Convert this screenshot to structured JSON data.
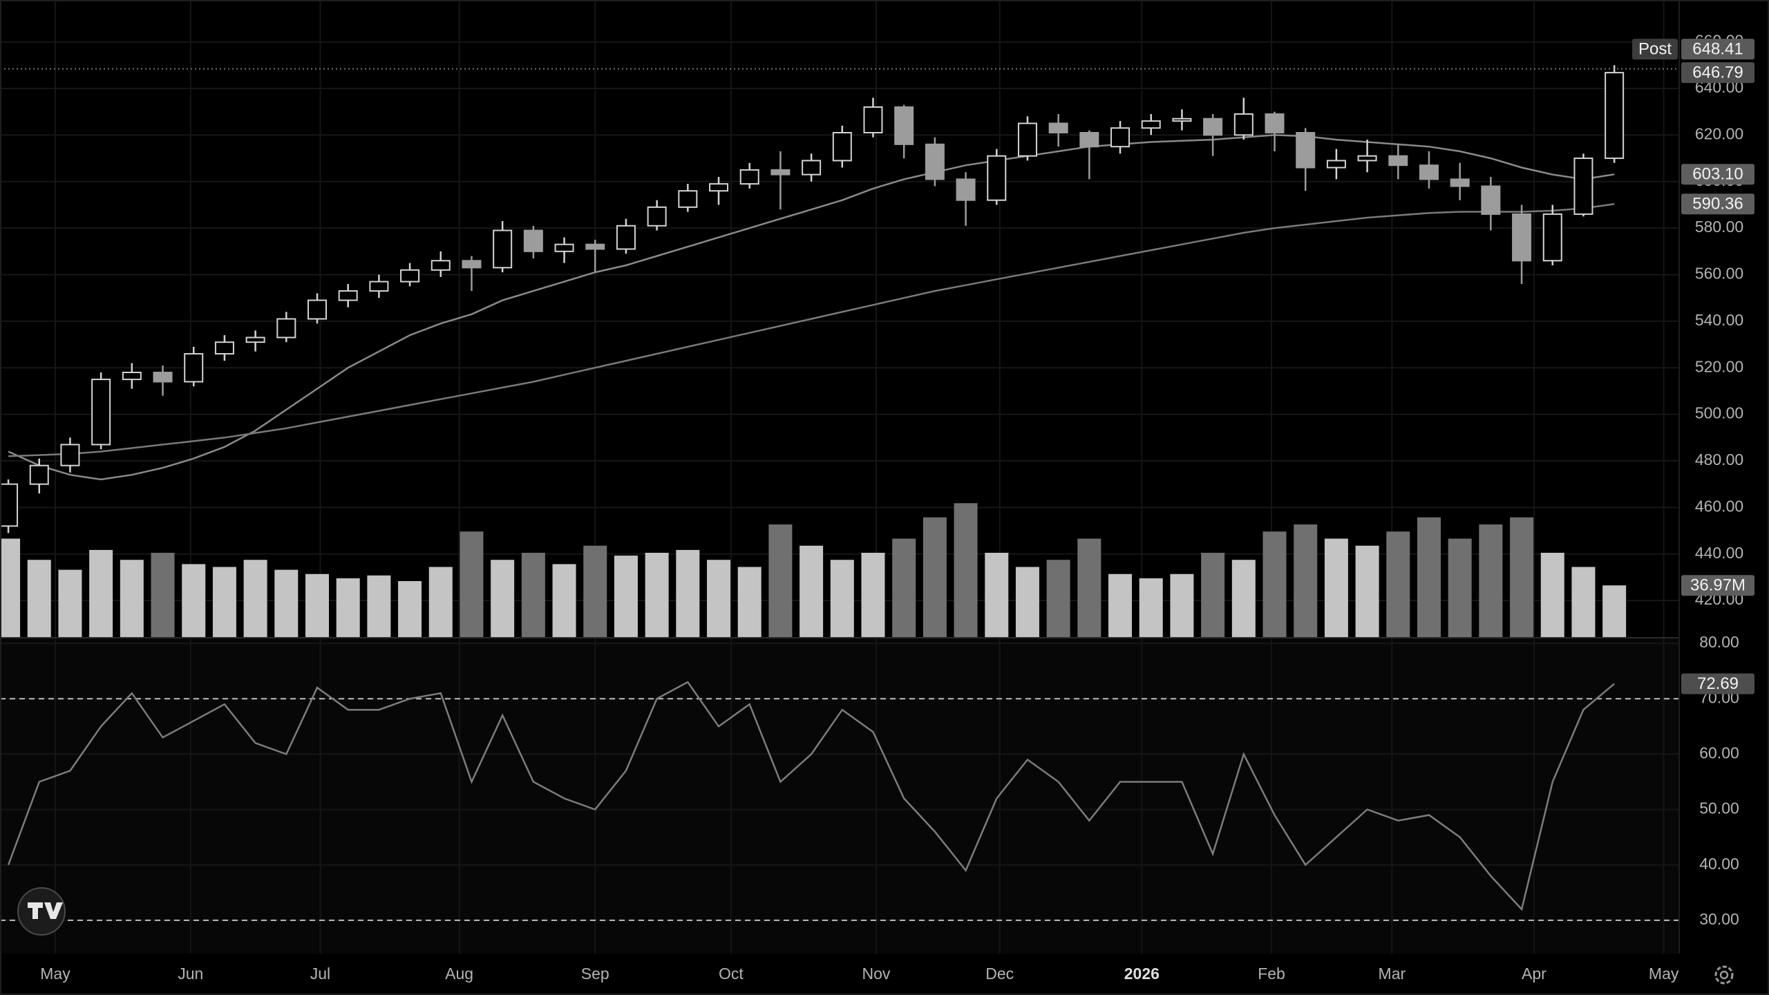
{
  "chart_data": {
    "type": "candlestick",
    "x": [
      0,
      1,
      2,
      3,
      4,
      5,
      6,
      7,
      8,
      9,
      10,
      11,
      12,
      13,
      14,
      15,
      16,
      17,
      18,
      19,
      20,
      21,
      22,
      23,
      24,
      25,
      26,
      27,
      28,
      29,
      30,
      31,
      32,
      33,
      34,
      35,
      36,
      37,
      38,
      39,
      40,
      41,
      42,
      43,
      44,
      45,
      46,
      47,
      48,
      49,
      50,
      51,
      52
    ],
    "xlim": [
      -0.27,
      54.1
    ],
    "xticks": [
      {
        "value": 1.52,
        "label": "May"
      },
      {
        "value": 5.9,
        "label": "Jun"
      },
      {
        "value": 10.1,
        "label": "Jul"
      },
      {
        "value": 14.6,
        "label": "Aug"
      },
      {
        "value": 19.0,
        "label": "Sep"
      },
      {
        "value": 23.4,
        "label": "Oct"
      },
      {
        "value": 28.1,
        "label": "Nov"
      },
      {
        "value": 32.1,
        "label": "Dec"
      },
      {
        "value": 36.7,
        "label": "2026"
      },
      {
        "value": 40.9,
        "label": "Feb"
      },
      {
        "value": 44.8,
        "label": "Mar"
      },
      {
        "value": 49.4,
        "label": "Apr"
      },
      {
        "value": 53.6,
        "label": "May"
      }
    ],
    "grid": true,
    "price": {
      "ylim": [
        404,
        678
      ],
      "yticks": [
        {
          "value": 420,
          "label": "420.00"
        },
        {
          "value": 440,
          "label": "440.00"
        },
        {
          "value": 460,
          "label": "460.00"
        },
        {
          "value": 480,
          "label": "480.00"
        },
        {
          "value": 500,
          "label": "500.00"
        },
        {
          "value": 520,
          "label": "520.00"
        },
        {
          "value": 540,
          "label": "540.00"
        },
        {
          "value": 560,
          "label": "560.00"
        },
        {
          "value": 580,
          "label": "580.00"
        },
        {
          "value": 600,
          "label": "600.00"
        },
        {
          "value": 620,
          "label": "620.00"
        },
        {
          "value": 640,
          "label": "640.00"
        },
        {
          "value": 660,
          "label": "660.00"
        }
      ],
      "candles": {
        "up_color": "#d4d4d4",
        "down_color": "#9c9c9c",
        "open": [
          452,
          470,
          478,
          487,
          515,
          518,
          514,
          526,
          531,
          533,
          541,
          549,
          553,
          557,
          562,
          566,
          563,
          579,
          570,
          573,
          571,
          581,
          589,
          596,
          599,
          605,
          603,
          609,
          621,
          632,
          616,
          601,
          592,
          611,
          625,
          621,
          615,
          623,
          626,
          627,
          620,
          629,
          621,
          606,
          609,
          611,
          607,
          601,
          598,
          586,
          566,
          586,
          610
        ],
        "high": [
          472,
          481,
          490,
          518,
          522,
          521,
          529,
          534,
          536,
          544,
          552,
          556,
          560,
          565,
          570,
          568,
          583,
          581,
          576,
          575,
          584,
          592,
          599,
          602,
          608,
          613,
          612,
          624,
          636,
          633,
          619,
          604,
          614,
          628,
          629,
          622,
          626,
          629,
          631,
          629,
          636,
          630,
          623,
          614,
          618,
          616,
          613,
          608,
          602,
          590,
          590,
          612,
          650
        ],
        "low": [
          449,
          466,
          475,
          485,
          511,
          508,
          512,
          523,
          527,
          531,
          539,
          546,
          550,
          555,
          559,
          553,
          561,
          567,
          565,
          561,
          569,
          579,
          587,
          590,
          597,
          588,
          600,
          606,
          619,
          610,
          598,
          581,
          590,
          609,
          615,
          601,
          612,
          620,
          622,
          611,
          618,
          613,
          596,
          601,
          604,
          601,
          597,
          592,
          579,
          556,
          564,
          585,
          608
        ],
        "close": [
          470,
          478,
          487,
          515,
          518,
          514,
          526,
          531,
          533,
          541,
          549,
          553,
          557,
          562,
          566,
          563,
          579,
          570,
          573,
          571,
          581,
          589,
          596,
          599,
          605,
          603,
          609,
          621,
          632,
          616,
          601,
          592,
          611,
          625,
          621,
          615,
          623,
          626,
          627,
          620,
          629,
          621,
          606,
          609,
          611,
          607,
          601,
          598,
          586,
          566,
          586,
          610,
          646.79
        ]
      },
      "ma_lines": [
        {
          "color": "#8a8a8a",
          "last_label": "603.10",
          "values": [
            484,
            478,
            474,
            472,
            474,
            477,
            481,
            486,
            493,
            502,
            511,
            520,
            527,
            534,
            539,
            543,
            549,
            553,
            557,
            561,
            564,
            568,
            572,
            576,
            580,
            584,
            588,
            592,
            597,
            601,
            604,
            607,
            609,
            611,
            613,
            615,
            616,
            617,
            617.5,
            618,
            619,
            620,
            619.5,
            618,
            617,
            616,
            615,
            613,
            610,
            606,
            603,
            601,
            603.1
          ]
        },
        {
          "color": "#7a7a7a",
          "last_label": "590.36",
          "values": [
            482,
            482.5,
            483,
            484,
            485.5,
            487,
            488.5,
            490,
            492,
            494,
            496.5,
            499,
            501.5,
            504,
            506.5,
            509,
            511.5,
            514,
            517,
            520,
            523,
            526,
            529,
            532,
            535,
            538,
            541,
            544,
            547,
            550,
            553,
            555.5,
            558,
            560.5,
            563,
            565.5,
            568,
            570.5,
            573,
            575.5,
            578,
            580,
            581.5,
            583,
            584.5,
            585.5,
            586.5,
            587,
            587,
            587,
            587.5,
            588.5,
            590.36
          ]
        }
      ],
      "post": {
        "label": "Post",
        "value": 648.41
      }
    },
    "volume": {
      "ylim": [
        0,
        140
      ],
      "up_color": "#c4c4c4",
      "down_color": "#707070",
      "values": [
        70,
        55,
        48,
        62,
        55,
        60,
        52,
        50,
        55,
        48,
        45,
        42,
        44,
        40,
        50,
        75,
        55,
        60,
        52,
        65,
        58,
        60,
        62,
        55,
        50,
        80,
        65,
        55,
        60,
        70,
        85,
        95,
        60,
        50,
        55,
        70,
        45,
        42,
        45,
        60,
        55,
        75,
        80,
        70,
        65,
        75,
        85,
        70,
        80,
        85,
        60,
        50,
        36.97
      ],
      "last_label": "36.97M"
    },
    "rsi": {
      "ylim": [
        24,
        81
      ],
      "color": "#7c7c7c",
      "yticks": [
        {
          "value": 30,
          "label": "30.00"
        },
        {
          "value": 40,
          "label": "40.00"
        },
        {
          "value": 50,
          "label": "50.00"
        },
        {
          "value": 60,
          "label": "60.00"
        },
        {
          "value": 70,
          "label": "70.00"
        },
        {
          "value": 80,
          "label": "80.00"
        }
      ],
      "bands": [
        30,
        70
      ],
      "values": [
        40,
        55,
        57,
        65,
        71,
        63,
        66,
        69,
        62,
        60,
        72,
        68,
        68,
        70,
        71,
        55,
        67,
        55,
        52,
        50,
        57,
        70,
        73,
        65,
        69,
        55,
        60,
        68,
        64,
        52,
        46,
        39,
        52,
        59,
        55,
        48,
        55,
        55,
        55,
        42,
        60,
        49,
        40,
        45,
        50,
        48,
        49,
        45,
        38,
        32,
        55,
        68,
        72.69
      ]
    }
  }
}
